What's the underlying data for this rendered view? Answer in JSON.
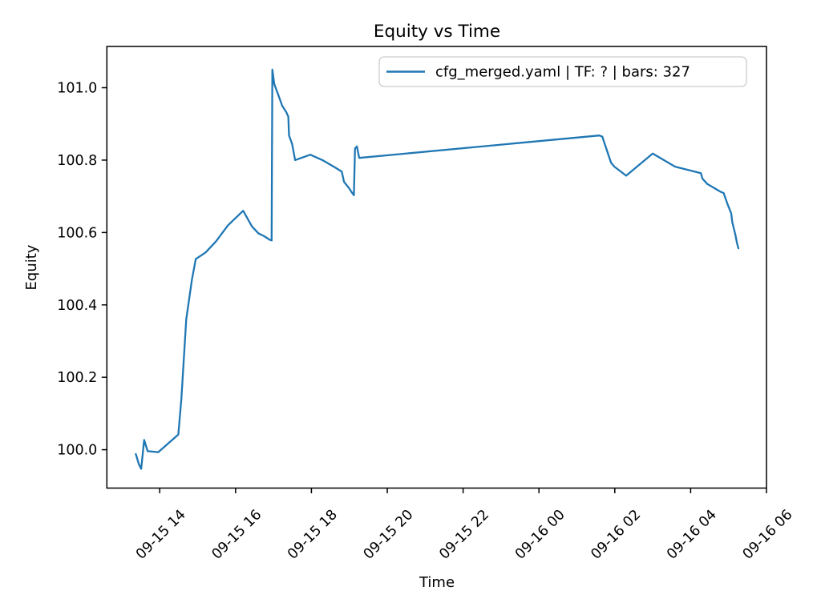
{
  "chart_data": {
    "type": "line",
    "title": "Equity vs Time",
    "xlabel": "Time",
    "ylabel": "Equity",
    "legend": {
      "label": "cfg_merged.yaml | TF: ? | bars: 327",
      "position": "upper right",
      "border_color": "#cccccc",
      "background": "#ffffff"
    },
    "line_color": "#1f77b4",
    "grid": false,
    "xlim_hours": [
      -1.394,
      16.0
    ],
    "ylim": [
      99.894,
      101.114
    ],
    "x_ticks": [
      {
        "t": 0,
        "label": "09-15 14"
      },
      {
        "t": 2,
        "label": "09-15 16"
      },
      {
        "t": 4,
        "label": "09-15 18"
      },
      {
        "t": 6,
        "label": "09-15 20"
      },
      {
        "t": 8,
        "label": "09-15 22"
      },
      {
        "t": 10,
        "label": "09-16 00"
      },
      {
        "t": 12,
        "label": "09-16 02"
      },
      {
        "t": 14,
        "label": "09-16 04"
      },
      {
        "t": 16,
        "label": "09-16 06"
      }
    ],
    "y_ticks": [
      {
        "v": 100.0,
        "label": "100.0"
      },
      {
        "v": 100.2,
        "label": "100.2"
      },
      {
        "v": 100.4,
        "label": "100.4"
      },
      {
        "v": 100.6,
        "label": "100.6"
      },
      {
        "v": 100.8,
        "label": "100.8"
      },
      {
        "v": 101.0,
        "label": "101.0"
      }
    ],
    "series": [
      {
        "name": "cfg_merged.yaml | TF: ? | bars: 327",
        "color": "#1f77b4",
        "points_t_hours_vs_equity": [
          [
            -0.63,
            99.988
          ],
          [
            -0.55,
            99.96
          ],
          [
            -0.49,
            99.947
          ],
          [
            -0.41,
            100.027
          ],
          [
            -0.32,
            99.996
          ],
          [
            -0.04,
            99.993
          ],
          [
            0.49,
            100.042
          ],
          [
            0.57,
            100.14
          ],
          [
            0.7,
            100.36
          ],
          [
            0.85,
            100.47
          ],
          [
            0.95,
            100.527
          ],
          [
            1.21,
            100.545
          ],
          [
            1.48,
            100.575
          ],
          [
            1.8,
            100.62
          ],
          [
            2.2,
            100.66
          ],
          [
            2.43,
            100.617
          ],
          [
            2.6,
            100.598
          ],
          [
            2.75,
            100.59
          ],
          [
            2.9,
            100.58
          ],
          [
            2.95,
            100.578
          ],
          [
            2.97,
            101.05
          ],
          [
            3.02,
            101.01
          ],
          [
            3.11,
            100.985
          ],
          [
            3.23,
            100.95
          ],
          [
            3.34,
            100.932
          ],
          [
            3.39,
            100.92
          ],
          [
            3.41,
            100.868
          ],
          [
            3.49,
            100.845
          ],
          [
            3.57,
            100.8
          ],
          [
            3.97,
            100.815
          ],
          [
            4.29,
            100.8
          ],
          [
            4.65,
            100.778
          ],
          [
            4.8,
            100.768
          ],
          [
            4.86,
            100.74
          ],
          [
            4.99,
            100.723
          ],
          [
            5.07,
            100.71
          ],
          [
            5.12,
            100.703
          ],
          [
            5.15,
            100.832
          ],
          [
            5.2,
            100.838
          ],
          [
            5.26,
            100.806
          ],
          [
            11.59,
            100.868
          ],
          [
            11.67,
            100.865
          ],
          [
            11.9,
            100.793
          ],
          [
            11.99,
            100.782
          ],
          [
            12.3,
            100.757
          ],
          [
            13.0,
            100.818
          ],
          [
            13.59,
            100.782
          ],
          [
            14.27,
            100.764
          ],
          [
            14.31,
            100.749
          ],
          [
            14.44,
            100.734
          ],
          [
            14.8,
            100.712
          ],
          [
            14.87,
            100.709
          ],
          [
            14.97,
            100.679
          ],
          [
            15.07,
            100.653
          ],
          [
            15.1,
            100.628
          ],
          [
            15.18,
            100.594
          ],
          [
            15.22,
            100.572
          ],
          [
            15.26,
            100.556
          ]
        ]
      }
    ]
  }
}
